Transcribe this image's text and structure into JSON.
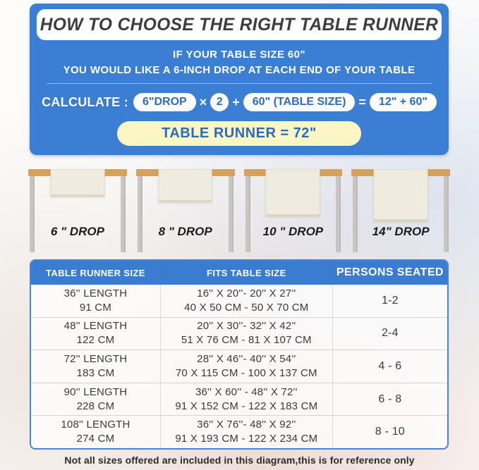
{
  "hero": {
    "title": "HOW TO CHOOSE THE RIGHT TABLE RUNNER",
    "line1": "IF YOUR TABLE SIZE 60\"",
    "line2": "YOU WOULD LIKE A 6-INCH DROP AT EACH END OF YOUR TABLE",
    "calc_label": "CALCULATE :",
    "pill_drop": "6\"DROP",
    "op_multiply": "×",
    "pill_two": "2",
    "op_plus": "+",
    "pill_table_size": "60\"  (TABLE SIZE)",
    "op_equals": "=",
    "pill_sum": "12\" + 60\"",
    "result": "TABLE RUNNER = 72\""
  },
  "drops": [
    {
      "label": "6 \" DROP",
      "drop_inches": 6
    },
    {
      "label": "8 \" DROP",
      "drop_inches": 8
    },
    {
      "label": "10 \" DROP",
      "drop_inches": 10
    },
    {
      "label": "14\" DROP",
      "drop_inches": 14
    }
  ],
  "size_table": {
    "headers": [
      "TABLE RUNNER SIZE",
      "FITS TABLE SIZE",
      "PERSONS SEATED"
    ],
    "rows": [
      {
        "runner_in": "36'' LENGTH",
        "runner_cm": "91 CM",
        "fits_in": "16'' X 20''- 20'' X 27''",
        "fits_cm": "40 X 50 CM - 50 X 70 CM",
        "persons": "1-2"
      },
      {
        "runner_in": "48'' LENGTH",
        "runner_cm": "122 CM",
        "fits_in": "20'' X 30''- 32'' X 42''",
        "fits_cm": "51 X 76 CM - 81 X 107 CM",
        "persons": "2-4"
      },
      {
        "runner_in": "72'' LENGTH",
        "runner_cm": "183 CM",
        "fits_in": "28'' X 46''- 40'' X 54''",
        "fits_cm": "70 X 115 CM - 100 X 137 CM",
        "persons": "4 - 6"
      },
      {
        "runner_in": "90'' LENGTH",
        "runner_cm": "228 CM",
        "fits_in": "36'' X 60'' - 48'' X 72''",
        "fits_cm": "91 X 152 CM - 122 X 183 CM",
        "persons": "6 - 8"
      },
      {
        "runner_in": "108'' LENGTH",
        "runner_cm": "274 CM",
        "fits_in": "36'' X 76''- 48'' X 92''",
        "fits_cm": "91 X 193 CM - 122 X 234 CM",
        "persons": "8 - 10"
      }
    ]
  },
  "footnote": "Not all sizes offered are included in this diagram,this is for reference only",
  "colors": {
    "hero_blue": "#3b7fd4",
    "header_blue": "#3a7ccf",
    "pill_text_blue": "#2b6cb8",
    "result_yellow": "#fbf6c3",
    "tabletop_wood": "#d7a258",
    "table_leg_gray": "#c9c5c1",
    "runner_cream": "#f0ebdf",
    "title_charcoal": "#3d3d3d"
  }
}
